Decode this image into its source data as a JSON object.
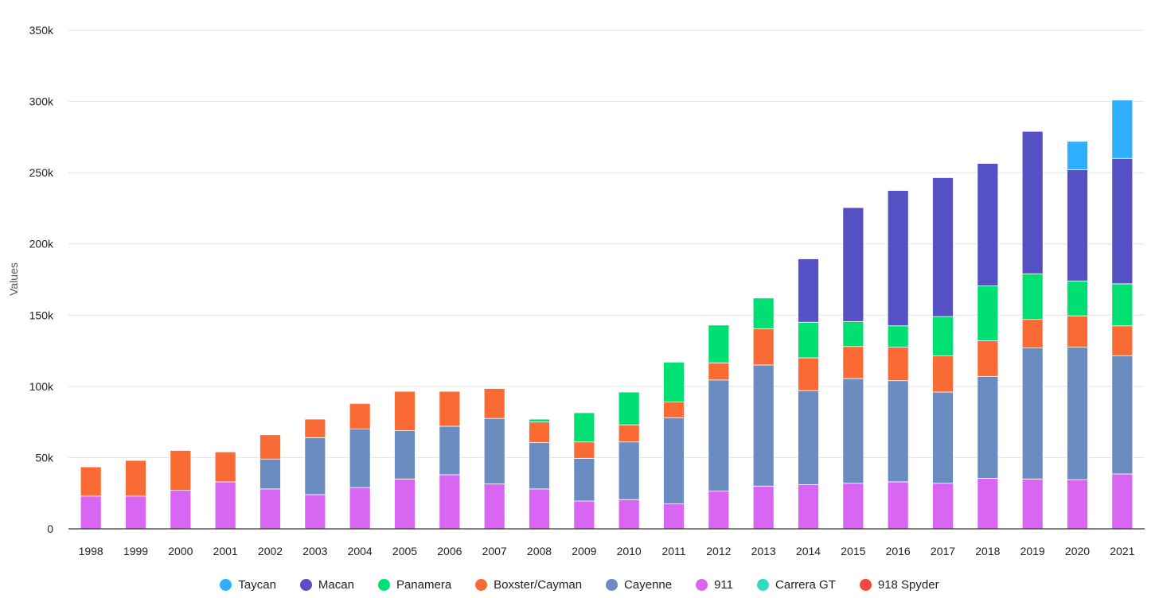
{
  "chart_data": {
    "type": "bar",
    "stacked": true,
    "ylabel": "Values",
    "xlabel": "",
    "ylim": [
      0,
      350000
    ],
    "yticks": [
      0,
      50000,
      100000,
      150000,
      200000,
      250000,
      300000,
      350000
    ],
    "ytick_labels": [
      "0",
      "50k",
      "100k",
      "150k",
      "200k",
      "250k",
      "300k",
      "350k"
    ],
    "grid": true,
    "legend_position": "bottom",
    "categories": [
      "1998",
      "1999",
      "2000",
      "2001",
      "2002",
      "2003",
      "2004",
      "2005",
      "2006",
      "2007",
      "2008",
      "2009",
      "2010",
      "2011",
      "2012",
      "2013",
      "2014",
      "2015",
      "2016",
      "2017",
      "2018",
      "2019",
      "2020",
      "2021"
    ],
    "series": [
      {
        "name": "911",
        "color": "#d966f2",
        "values": [
          23000,
          23000,
          27000,
          33000,
          28000,
          24000,
          29000,
          35000,
          38000,
          31500,
          28000,
          19500,
          20500,
          17500,
          26500,
          30000,
          31000,
          32000,
          33000,
          32000,
          35500,
          35000,
          34500,
          38500
        ]
      },
      {
        "name": "Carrera GT",
        "color": "#2fd9c6",
        "values": [
          0,
          0,
          0,
          0,
          0,
          0,
          0,
          0,
          0,
          0,
          0,
          0,
          0,
          0,
          0,
          0,
          0,
          0,
          0,
          0,
          0,
          0,
          0,
          0
        ]
      },
      {
        "name": "918 Spyder",
        "color": "#f54646",
        "values": [
          0,
          0,
          0,
          0,
          0,
          0,
          0,
          0,
          0,
          0,
          0,
          0,
          0,
          0,
          0,
          0,
          0,
          0,
          0,
          0,
          0,
          0,
          0,
          0
        ]
      },
      {
        "name": "Cayenne",
        "color": "#6a8cc0",
        "values": [
          0,
          0,
          0,
          0,
          21000,
          40000,
          41000,
          34000,
          34000,
          46000,
          32500,
          30000,
          40500,
          60500,
          78000,
          85000,
          66000,
          73500,
          71000,
          64000,
          71500,
          92000,
          93000,
          83000
        ]
      },
      {
        "name": "Boxster/Cayman",
        "color": "#fa6a35",
        "values": [
          20500,
          25000,
          28000,
          21000,
          17000,
          13000,
          18000,
          27500,
          24500,
          21000,
          14500,
          11500,
          12000,
          11000,
          12000,
          25500,
          23000,
          22500,
          23500,
          25500,
          25000,
          20000,
          22000,
          21000
        ]
      },
      {
        "name": "Panamera",
        "color": "#00df72",
        "values": [
          0,
          0,
          0,
          0,
          0,
          0,
          0,
          0,
          0,
          0,
          2000,
          20500,
          23000,
          28000,
          26500,
          21500,
          25000,
          17500,
          15000,
          27500,
          38500,
          32000,
          24500,
          29500
        ]
      },
      {
        "name": "Macan",
        "color": "#5550c3",
        "values": [
          0,
          0,
          0,
          0,
          0,
          0,
          0,
          0,
          0,
          0,
          0,
          0,
          0,
          0,
          0,
          0,
          44500,
          80000,
          95000,
          97500,
          86000,
          100000,
          78000,
          88000
        ]
      },
      {
        "name": "Taycan",
        "color": "#2eafff",
        "values": [
          0,
          0,
          0,
          0,
          0,
          0,
          0,
          0,
          0,
          0,
          0,
          0,
          0,
          0,
          0,
          0,
          0,
          0,
          0,
          0,
          0,
          0,
          20000,
          41000
        ]
      }
    ],
    "legend_order": [
      "Taycan",
      "Macan",
      "Panamera",
      "Boxster/Cayman",
      "Cayenne",
      "911",
      "Carrera GT",
      "918 Spyder"
    ]
  }
}
